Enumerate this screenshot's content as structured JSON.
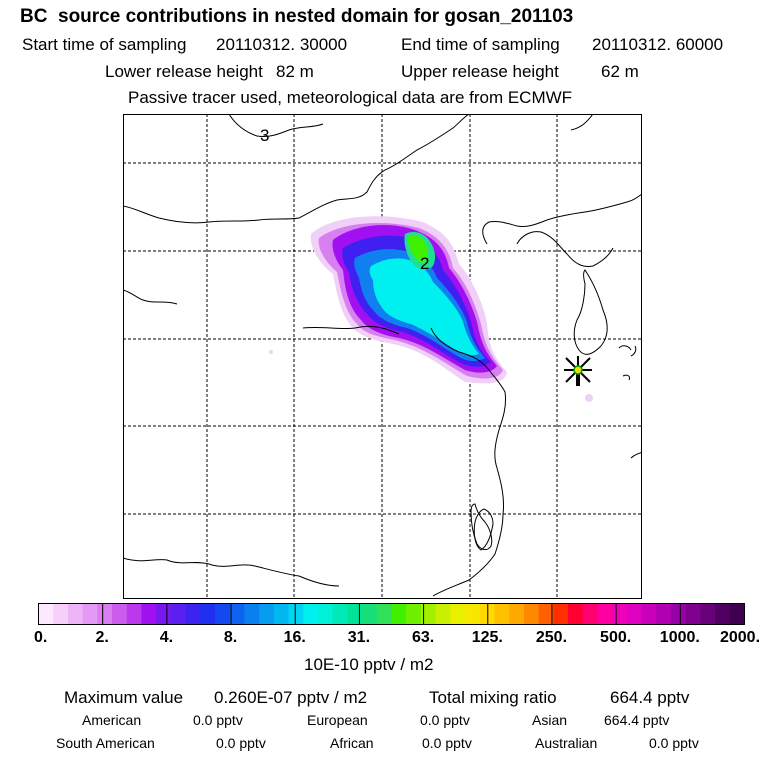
{
  "header": {
    "title": "BC  source contributions in nested domain for gosan_201103",
    "start_label": "Start time of sampling",
    "start_value": "20110312. 30000",
    "end_label": "End time of sampling",
    "end_value": "20110312. 60000",
    "lower_label": "Lower release height",
    "lower_value": "82 m",
    "upper_label": "Upper release height",
    "upper_value": "62 m",
    "note": "Passive tracer used, meteorological data are from ECMWF"
  },
  "map": {
    "region_labels": [
      "3",
      "2"
    ],
    "receptor": "gosan",
    "plume_colors": [
      "#f0d0f8",
      "#d880f0",
      "#a010f0",
      "#4020f0",
      "#1080f0",
      "#00f0f0",
      "#20e090",
      "#40f000"
    ]
  },
  "colorbar": {
    "tick_labels": [
      "0.",
      "2.",
      "4.",
      "8.",
      "16.",
      "31.",
      "63.",
      "125.",
      "250.",
      "500.",
      "1000.",
      "2000."
    ],
    "colors": [
      "#fce8ff",
      "#f6d0fb",
      "#eeb4f8",
      "#e29af4",
      "#d87ef0",
      "#cc5cee",
      "#bc38ec",
      "#a010f0",
      "#7818f0",
      "#5a20f0",
      "#3c24f0",
      "#2030f0",
      "#1448f0",
      "#0e64f0",
      "#0a80f0",
      "#069cf0",
      "#00b8f0",
      "#00d4f0",
      "#00f0f0",
      "#00f0d8",
      "#00eab8",
      "#00e498",
      "#18e078",
      "#30e058",
      "#40f000",
      "#70f000",
      "#a0f000",
      "#c8f000",
      "#e8f000",
      "#f8e800",
      "#ffd800",
      "#ffc000",
      "#ffa800",
      "#ff8800",
      "#ff6000",
      "#ff3000",
      "#ff0030",
      "#ff0070",
      "#ff00a0",
      "#f000b8",
      "#e000c0",
      "#c800b8",
      "#b000b0",
      "#9800a8",
      "#800090",
      "#680078",
      "#500060",
      "#400050"
    ],
    "units": "10E-10 pptv / m2"
  },
  "summary": {
    "max_label": "Maximum value",
    "max_value": "0.260E-07 pptv / m2",
    "total_label": "Total mixing ratio",
    "total_value": "664.4 pptv",
    "regions": [
      {
        "name": "American",
        "value": "0.0 pptv"
      },
      {
        "name": "European",
        "value": "0.0 pptv"
      },
      {
        "name": "Asian",
        "value": "664.4 pptv"
      },
      {
        "name": "South American",
        "value": "0.0 pptv"
      },
      {
        "name": "African",
        "value": "0.0 pptv"
      },
      {
        "name": "Australian",
        "value": "0.0 pptv"
      }
    ]
  }
}
